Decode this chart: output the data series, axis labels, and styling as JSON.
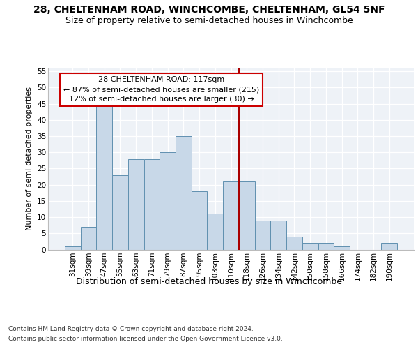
{
  "title": "28, CHELTENHAM ROAD, WINCHCOMBE, CHELTENHAM, GL54 5NF",
  "subtitle": "Size of property relative to semi-detached houses in Winchcombe",
  "xlabel": "Distribution of semi-detached houses by size in Winchcombe",
  "ylabel": "Number of semi-detached properties",
  "categories": [
    "31sqm",
    "39sqm",
    "47sqm",
    "55sqm",
    "63sqm",
    "71sqm",
    "79sqm",
    "87sqm",
    "95sqm",
    "103sqm",
    "110sqm",
    "118sqm",
    "126sqm",
    "134sqm",
    "142sqm",
    "150sqm",
    "158sqm",
    "166sqm",
    "174sqm",
    "182sqm",
    "190sqm"
  ],
  "values": [
    1,
    7,
    45,
    23,
    28,
    28,
    30,
    35,
    18,
    11,
    21,
    21,
    9,
    9,
    4,
    2,
    2,
    1,
    0,
    0,
    2
  ],
  "bar_color": "#c8d8e8",
  "bar_edge_color": "#6090b0",
  "highlight_line_color": "#aa0000",
  "annotation_line": "28 CHELTENHAM ROAD: 117sqm",
  "annotation_line2": "← 87% of semi-detached houses are smaller (215)",
  "annotation_line3": "12% of semi-detached houses are larger (30) →",
  "annotation_box_color": "#ffffff",
  "annotation_box_edge": "#cc0000",
  "ylim": [
    0,
    56
  ],
  "yticks": [
    0,
    5,
    10,
    15,
    20,
    25,
    30,
    35,
    40,
    45,
    50,
    55
  ],
  "background_color": "#eef2f7",
  "footer_line1": "Contains HM Land Registry data © Crown copyright and database right 2024.",
  "footer_line2": "Contains public sector information licensed under the Open Government Licence v3.0.",
  "title_fontsize": 10,
  "subtitle_fontsize": 9,
  "xlabel_fontsize": 9,
  "ylabel_fontsize": 8,
  "tick_fontsize": 7.5,
  "footer_fontsize": 6.5,
  "annotation_fontsize": 8
}
